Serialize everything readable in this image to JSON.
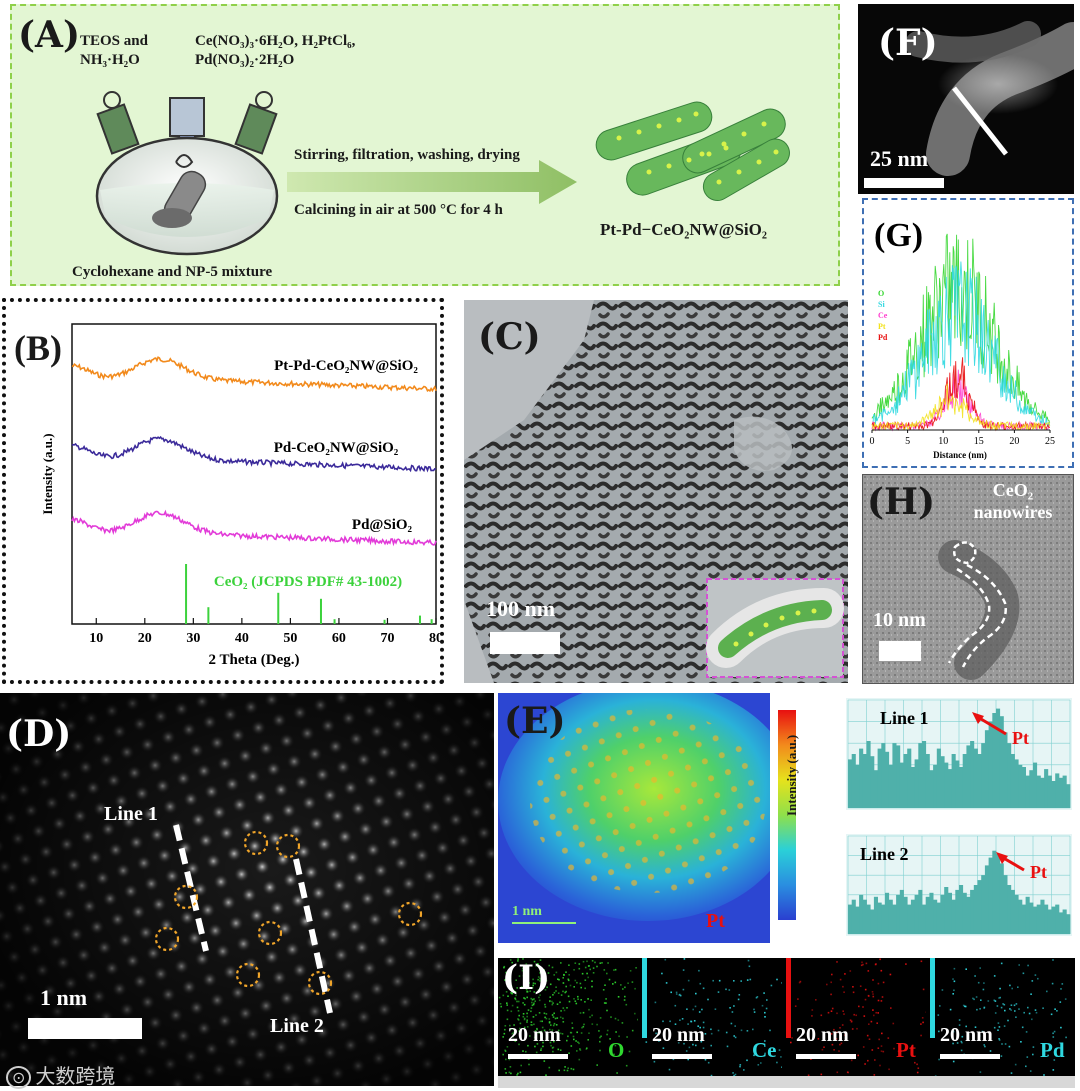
{
  "figure": {
    "panel_a": {
      "letter": "(A)",
      "reagent_left_line1": "TEOS and",
      "reagent_left_line2": "NH₃·H₂O",
      "reagent_right_line1": "Ce(NO₃)₃·6H₂O, H₂PtCl₆,",
      "reagent_right_line2": "Pd(NO₃)₂·2H₂O",
      "arrow_text_top": "Stirring, filtration, washing, drying",
      "arrow_text_bottom": "Calcining in air at 500 °C for 4 h",
      "product_label": "Pt-Pd−CeO₂NW@SiO₂",
      "flask_label": "Cyclohexane and NP-5 mixture"
    },
    "panel_b": {
      "letter": "(B)",
      "chart_data": {
        "type": "line",
        "title": "",
        "xlabel": "2 Theta (Deg.)",
        "ylabel": "Intensity (a.u.)",
        "xlim": [
          5,
          80
        ],
        "xticks": [
          "10",
          "20",
          "30",
          "40",
          "50",
          "60",
          "70",
          "80"
        ],
        "series": [
          {
            "name": "Pt-Pd-CeO₂NW@SiO₂",
            "color": "#f28a1c",
            "offset": 2.0,
            "hump_center": 23,
            "hump_height": 0.55
          },
          {
            "name": "Pd-CeO₂NW@SiO₂",
            "color": "#3b2a9a",
            "offset": 1.0,
            "hump_center": 23,
            "hump_height": 0.55
          },
          {
            "name": "Pd@SiO₂",
            "color": "#e23bd8",
            "offset": 0.0,
            "hump_center": 23,
            "hump_height": 0.55
          }
        ],
        "reference": {
          "name": "CeO₂ (JCPDS PDF# 43-1002)",
          "color": "#3cd23c",
          "peaks": [
            {
              "x": 28.5,
              "h": 1.0
            },
            {
              "x": 33.1,
              "h": 0.28
            },
            {
              "x": 47.5,
              "h": 0.52
            },
            {
              "x": 56.3,
              "h": 0.42
            },
            {
              "x": 59.1,
              "h": 0.08
            },
            {
              "x": 69.4,
              "h": 0.07
            },
            {
              "x": 76.7,
              "h": 0.14
            },
            {
              "x": 79.1,
              "h": 0.08
            }
          ]
        }
      }
    },
    "panel_c": {
      "letter": "(C)",
      "scale": "100 nm"
    },
    "panel_d": {
      "letter": "(D)",
      "line1": "Line 1",
      "line2": "Line 2",
      "scale": "1 nm"
    },
    "panel_e": {
      "letter": "(E)",
      "scale": "1 nm",
      "element": "Pt",
      "colorbar_label": "Intensity (a.u.)",
      "profile1_label": "Line 1",
      "profile2_label": "Line 2",
      "profile1_arrow": "Pt",
      "profile2_arrow": "Pt",
      "chart_data": [
        {
          "type": "bar",
          "title": "Line 1",
          "values": [
            0.45,
            0.5,
            0.4,
            0.55,
            0.5,
            0.62,
            0.48,
            0.35,
            0.55,
            0.6,
            0.52,
            0.4,
            0.6,
            0.58,
            0.42,
            0.5,
            0.55,
            0.38,
            0.45,
            0.6,
            0.62,
            0.5,
            0.35,
            0.4,
            0.55,
            0.48,
            0.42,
            0.36,
            0.5,
            0.44,
            0.38,
            0.5,
            0.58,
            0.62,
            0.55,
            0.5,
            0.6,
            0.72,
            0.8,
            0.88,
            0.92,
            0.85,
            0.7,
            0.6,
            0.5,
            0.45,
            0.4,
            0.38,
            0.3,
            0.35,
            0.42,
            0.3,
            0.28,
            0.36,
            0.3,
            0.25,
            0.32,
            0.28,
            0.3,
            0.22
          ]
        },
        {
          "type": "bar",
          "title": "Line 2",
          "values": [
            0.3,
            0.35,
            0.28,
            0.4,
            0.35,
            0.3,
            0.25,
            0.38,
            0.32,
            0.3,
            0.42,
            0.35,
            0.3,
            0.4,
            0.45,
            0.38,
            0.3,
            0.35,
            0.4,
            0.45,
            0.3,
            0.38,
            0.42,
            0.35,
            0.32,
            0.4,
            0.48,
            0.42,
            0.35,
            0.45,
            0.5,
            0.42,
            0.38,
            0.45,
            0.5,
            0.55,
            0.6,
            0.7,
            0.78,
            0.85,
            0.82,
            0.72,
            0.6,
            0.5,
            0.45,
            0.4,
            0.35,
            0.3,
            0.38,
            0.32,
            0.28,
            0.3,
            0.35,
            0.3,
            0.25,
            0.28,
            0.3,
            0.22,
            0.25,
            0.2
          ]
        }
      ]
    },
    "panel_f": {
      "letter": "(F)",
      "scale": "25 nm"
    },
    "panel_g": {
      "letter": "(G)",
      "chart_data": {
        "type": "line",
        "xlabel": "Distance (nm)",
        "ylabel": "",
        "xlim": [
          0,
          25
        ],
        "xticks": [
          "0",
          "5",
          "10",
          "15",
          "20",
          "25"
        ],
        "legend": [
          "O",
          "Si",
          "Ce",
          "Pt",
          "Pd"
        ],
        "colors": {
          "O": "#35d62f",
          "Si": "#2fd8e0",
          "Ce": "#ff3fcf",
          "Pt": "#f2e21c",
          "Pd": "#e81010"
        }
      }
    },
    "panel_h": {
      "letter": "(H)",
      "title_line1": "CeO₂",
      "title_line2": "nanowires",
      "scale": "10 nm"
    },
    "panel_i": {
      "letter": "(I)",
      "maps": [
        {
          "element": "O",
          "scale": "20 nm",
          "color": "#2fd82f"
        },
        {
          "element": "Ce",
          "scale": "20 nm",
          "color": "#2fd8e0"
        },
        {
          "element": "Pt",
          "scale": "20 nm",
          "color": "#e81010"
        },
        {
          "element": "Pd",
          "scale": "20 nm",
          "color": "#2fd8e0"
        }
      ]
    },
    "watermark": "大数跨境"
  }
}
